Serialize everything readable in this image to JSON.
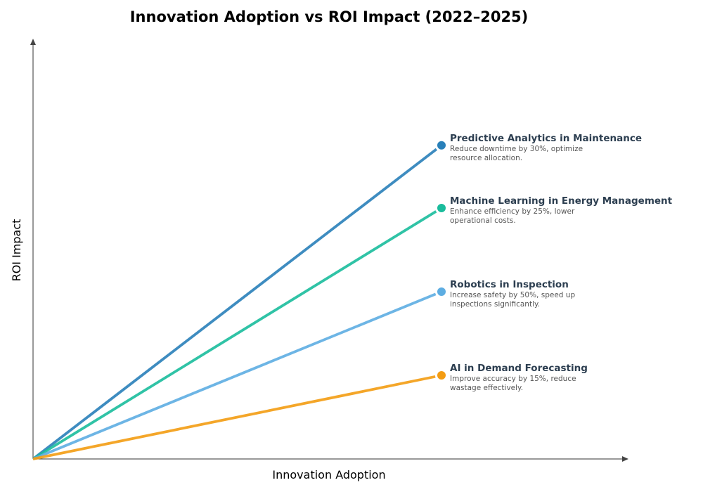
{
  "chart_data": {
    "type": "line",
    "title": "Innovation Adoption vs ROI Impact (2022–2025)",
    "xlabel": "Innovation Adoption",
    "ylabel": "ROI Impact",
    "xlim": [
      0,
      1
    ],
    "ylim": [
      0,
      1
    ],
    "grid": false,
    "ticks": false,
    "series": [
      {
        "name": "Predictive Analytics in Maintenance",
        "description": [
          "Reduce downtime by 30%, optimize",
          "resource allocation."
        ],
        "x": [
          0,
          0.7
        ],
        "y": [
          0,
          0.75
        ],
        "color": "#2980b9"
      },
      {
        "name": "Machine Learning in Energy Management",
        "description": [
          "Enhance efficiency by 25%, lower",
          "operational costs."
        ],
        "x": [
          0,
          0.7
        ],
        "y": [
          0,
          0.6
        ],
        "color": "#1abc9c"
      },
      {
        "name": "Robotics in Inspection",
        "description": [
          "Increase safety by 50%, speed up",
          "inspections significantly."
        ],
        "x": [
          0,
          0.7
        ],
        "y": [
          0,
          0.4
        ],
        "color": "#5dade2"
      },
      {
        "name": "AI in Demand Forecasting",
        "description": [
          "Improve accuracy by 15%, reduce",
          "wastage effectively."
        ],
        "x": [
          0,
          0.7
        ],
        "y": [
          0,
          0.2
        ],
        "color": "#f39c12"
      }
    ]
  }
}
